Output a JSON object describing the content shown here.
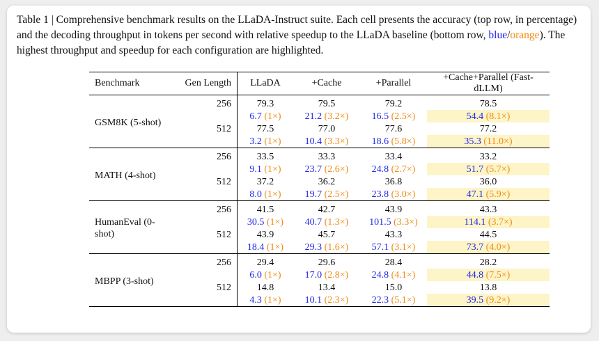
{
  "caption": {
    "main": "Table 1 | Comprehensive benchmark results on the LLaDA-Instruct suite. Each cell presents the accuracy (top row, in percentage) and the decoding throughput in tokens per second with relative speedup to the LLaDA baseline (bottom row, ",
    "blue_word": "blue",
    "slash": "/",
    "orange_word": "orange",
    "tail": "). The highest throughput and speedup for each configuration are highlighted."
  },
  "headers": [
    "Benchmark",
    "Gen Length",
    "LLaDA",
    "+Cache",
    "+Parallel",
    "+Cache+Parallel (Fast-dLLM)"
  ],
  "groups": [
    {
      "name": "GSM8K (5-shot)",
      "rows": [
        {
          "gen": "256",
          "acc": [
            "79.3",
            "79.5",
            "79.2",
            "78.5"
          ],
          "tp": [
            [
              "6.7",
              "(1×)"
            ],
            [
              "21.2",
              "(3.2×)"
            ],
            [
              "16.5",
              "(2.5×)"
            ],
            [
              "54.4",
              "(8.1×)"
            ]
          ]
        },
        {
          "gen": "512",
          "acc": [
            "77.5",
            "77.0",
            "77.6",
            "77.2"
          ],
          "tp": [
            [
              "3.2",
              "(1×)"
            ],
            [
              "10.4",
              "(3.3×)"
            ],
            [
              "18.6",
              "(5.8×)"
            ],
            [
              "35.3",
              "(11.0×)"
            ]
          ]
        }
      ]
    },
    {
      "name": "MATH (4-shot)",
      "rows": [
        {
          "gen": "256",
          "acc": [
            "33.5",
            "33.3",
            "33.4",
            "33.2"
          ],
          "tp": [
            [
              "9.1",
              "(1×)"
            ],
            [
              "23.7",
              "(2.6×)"
            ],
            [
              "24.8",
              "(2.7×)"
            ],
            [
              "51.7",
              "(5.7×)"
            ]
          ]
        },
        {
          "gen": "512",
          "acc": [
            "37.2",
            "36.2",
            "36.8",
            "36.0"
          ],
          "tp": [
            [
              "8.0",
              "(1×)"
            ],
            [
              "19.7",
              "(2.5×)"
            ],
            [
              "23.8",
              "(3.0×)"
            ],
            [
              "47.1",
              "(5.9×)"
            ]
          ]
        }
      ]
    },
    {
      "name": "HumanEval (0-shot)",
      "rows": [
        {
          "gen": "256",
          "acc": [
            "41.5",
            "42.7",
            "43.9",
            "43.3"
          ],
          "tp": [
            [
              "30.5",
              "(1×)"
            ],
            [
              "40.7",
              "(1.3×)"
            ],
            [
              "101.5",
              "(3.3×)"
            ],
            [
              "114.1",
              "(3.7×)"
            ]
          ]
        },
        {
          "gen": "512",
          "acc": [
            "43.9",
            "45.7",
            "43.3",
            "44.5"
          ],
          "tp": [
            [
              "18.4",
              "(1×)"
            ],
            [
              "29.3",
              "(1.6×)"
            ],
            [
              "57.1",
              "(3.1×)"
            ],
            [
              "73.7",
              "(4.0×)"
            ]
          ]
        }
      ]
    },
    {
      "name": "MBPP (3-shot)",
      "rows": [
        {
          "gen": "256",
          "acc": [
            "29.4",
            "29.6",
            "28.4",
            "28.2"
          ],
          "tp": [
            [
              "6.0",
              "(1×)"
            ],
            [
              "17.0",
              "(2.8×)"
            ],
            [
              "24.8",
              "(4.1×)"
            ],
            [
              "44.8",
              "(7.5×)"
            ]
          ]
        },
        {
          "gen": "512",
          "acc": [
            "14.8",
            "13.4",
            "15.0",
            "13.8"
          ],
          "tp": [
            [
              "4.3",
              "(1×)"
            ],
            [
              "10.1",
              "(2.3×)"
            ],
            [
              "22.3",
              "(5.1×)"
            ],
            [
              "39.5",
              "(9.2×)"
            ]
          ]
        }
      ]
    }
  ],
  "colors": {
    "blue": "#1f28e6",
    "orange": "#f28a11",
    "highlight": "#fdf4c8"
  }
}
